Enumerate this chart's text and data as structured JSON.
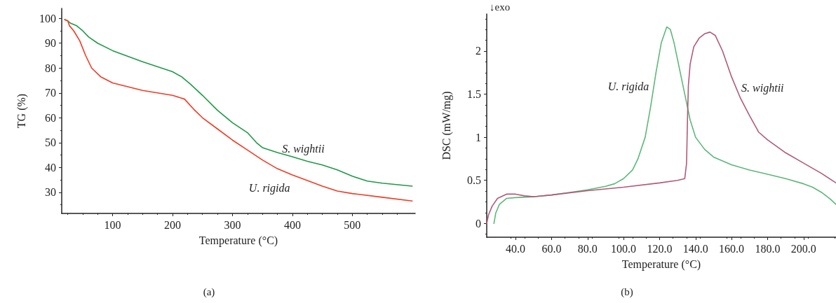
{
  "chart_data": [
    {
      "type": "line",
      "title": "(a)",
      "xlabel": "Temperature (°C)",
      "ylabel": "TG (%)",
      "xlim": [
        15,
        605
      ],
      "xticks": [
        100,
        200,
        300,
        400,
        500
      ],
      "ylim": [
        21.5,
        104
      ],
      "yticks": [
        30,
        40,
        50,
        60,
        70,
        80,
        90,
        100
      ],
      "grid": false,
      "legend": false,
      "marker": "none",
      "line_style": "solid",
      "series": [
        {
          "name": "S. wightii",
          "color": "#1f9a45",
          "x": [
            20,
            25,
            30,
            40,
            50,
            60,
            75,
            100,
            150,
            200,
            215,
            230,
            250,
            275,
            300,
            325,
            340,
            350,
            375,
            400,
            425,
            450,
            475,
            500,
            525,
            550,
            600
          ],
          "values": [
            99.5,
            99,
            98,
            97,
            95,
            92.5,
            90,
            87,
            82.5,
            78.5,
            76.5,
            73.5,
            69,
            63,
            58,
            54,
            50,
            48,
            46,
            44.3,
            42.5,
            41,
            39,
            36.5,
            34.5,
            33.7,
            32.5
          ]
        },
        {
          "name": "U. rigida",
          "color": "#f03c24",
          "x": [
            20,
            25,
            28,
            35,
            45,
            55,
            65,
            80,
            100,
            150,
            200,
            220,
            235,
            250,
            275,
            300,
            325,
            350,
            375,
            400,
            450,
            475,
            500,
            550,
            600
          ],
          "values": [
            99.5,
            99,
            97,
            95,
            91,
            85,
            80,
            76.5,
            74,
            71,
            69,
            67.5,
            63.5,
            60,
            55.5,
            51,
            47,
            43,
            39.5,
            37,
            32.5,
            30.5,
            29.5,
            28,
            26.5
          ]
        }
      ]
    },
    {
      "type": "line",
      "title": "(b)",
      "xlabel": "Temperature (°C)",
      "ylabel": "DSC (mW/mg)",
      "xlim": [
        24,
        218
      ],
      "xticks": [
        {
          "value": 40,
          "label": "40.0"
        },
        {
          "value": 60,
          "label": "60.0"
        },
        {
          "value": 80,
          "label": "80.0"
        },
        {
          "value": 100,
          "label": "100.0"
        },
        {
          "value": 120,
          "label": "120.0"
        },
        {
          "value": 140,
          "label": "140.0"
        },
        {
          "value": 160,
          "label": "160.0"
        },
        {
          "value": 180,
          "label": "180.0"
        },
        {
          "value": 200,
          "label": "200.0"
        }
      ],
      "ylim": [
        -0.16,
        2.43
      ],
      "yticks": [
        0,
        0.5,
        1,
        1.5,
        2
      ],
      "grid": false,
      "legend": false,
      "marker": "none",
      "line_style": "solid",
      "annotations": [
        "↓exo"
      ],
      "series": [
        {
          "name": "U. rigida",
          "color": "#5cb87a",
          "x": [
            28,
            29,
            31,
            35,
            40,
            50,
            60,
            70,
            80,
            90,
            95,
            100,
            105,
            108,
            112,
            115,
            118,
            121,
            124,
            126,
            128,
            131,
            134,
            137,
            140,
            145,
            150,
            160,
            170,
            180,
            190,
            200,
            205,
            210,
            215,
            218
          ],
          "values": [
            0,
            0.12,
            0.22,
            0.29,
            0.3,
            0.31,
            0.33,
            0.36,
            0.39,
            0.43,
            0.46,
            0.52,
            0.62,
            0.75,
            1.0,
            1.35,
            1.75,
            2.1,
            2.28,
            2.25,
            2.1,
            1.8,
            1.5,
            1.2,
            1.0,
            0.86,
            0.77,
            0.68,
            0.62,
            0.57,
            0.52,
            0.46,
            0.42,
            0.36,
            0.28,
            0.22
          ]
        },
        {
          "name": "S. wightii",
          "color": "#b05a78",
          "x": [
            24,
            25,
            27,
            30,
            35,
            40,
            45,
            50,
            60,
            80,
            100,
            120,
            130,
            134,
            135,
            135.5,
            136,
            137,
            139,
            142,
            145,
            148,
            151,
            155,
            160,
            165,
            170,
            174,
            175,
            180,
            190,
            200,
            210,
            218
          ],
          "values": [
            0,
            0.1,
            0.2,
            0.29,
            0.34,
            0.34,
            0.32,
            0.31,
            0.33,
            0.38,
            0.42,
            0.47,
            0.5,
            0.52,
            0.7,
            1.2,
            1.6,
            1.85,
            2.05,
            2.15,
            2.2,
            2.22,
            2.18,
            2.0,
            1.7,
            1.45,
            1.25,
            1.1,
            1.06,
            0.97,
            0.82,
            0.7,
            0.58,
            0.47
          ]
        }
      ]
    }
  ]
}
